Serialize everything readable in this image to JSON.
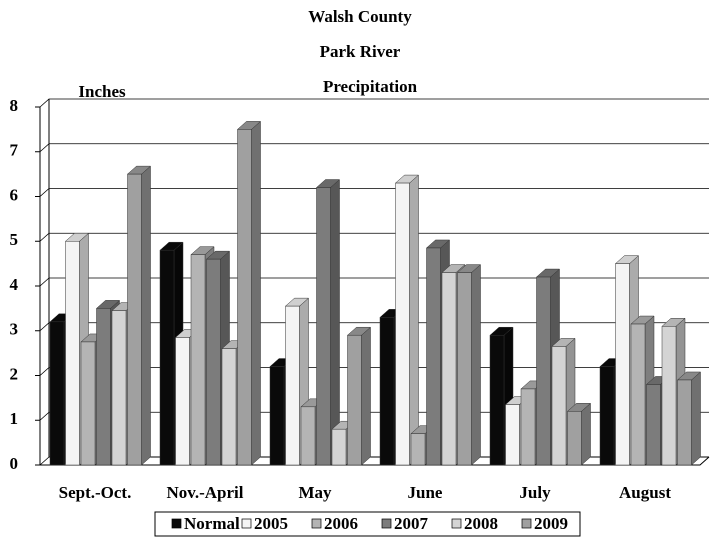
{
  "chart_data": {
    "type": "bar",
    "title": "Walsh County",
    "subtitle": "Park River",
    "subtitle2": "Precipitation",
    "ylabel": "Inches",
    "categories": [
      "Sept.-Oct.",
      "Nov.-April",
      "May",
      "June",
      "July",
      "August"
    ],
    "series": [
      {
        "name": "Normal",
        "color": "#0a0a0a",
        "values": [
          3.2,
          4.8,
          2.2,
          3.3,
          2.9,
          2.2
        ]
      },
      {
        "name": "2005",
        "color": "#f4f4f4",
        "values": [
          5.0,
          2.85,
          3.55,
          6.3,
          1.35,
          4.5
        ]
      },
      {
        "name": "2006",
        "color": "#b4b4b4",
        "values": [
          2.75,
          4.7,
          1.3,
          0.7,
          1.7,
          3.15
        ]
      },
      {
        "name": "2007",
        "color": "#7c7c7c",
        "values": [
          3.5,
          4.6,
          6.2,
          4.85,
          4.2,
          1.8
        ]
      },
      {
        "name": "2008",
        "color": "#d4d4d4",
        "values": [
          3.45,
          2.6,
          0.8,
          4.3,
          2.65,
          3.1
        ]
      },
      {
        "name": "2009",
        "color": "#a0a0a0",
        "values": [
          6.5,
          7.5,
          2.9,
          4.3,
          1.2,
          1.9
        ]
      }
    ],
    "ylim": [
      0,
      8
    ],
    "yticks": [
      0,
      1,
      2,
      3,
      4,
      5,
      6,
      7,
      8
    ],
    "grid": true,
    "legend": "bottom"
  }
}
